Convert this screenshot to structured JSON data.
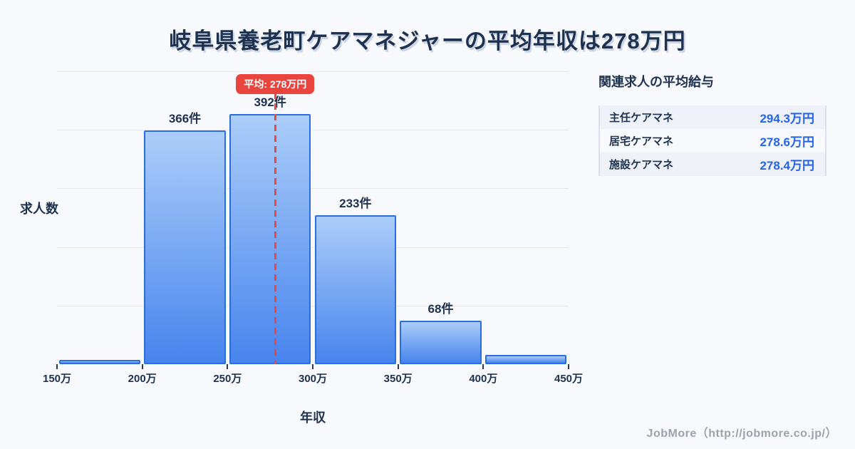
{
  "title": "岐阜県養老町ケアマネジャーの平均年収は278万円",
  "chart_data": {
    "type": "bar",
    "title": "岐阜県養老町ケアマネジャーの平均年収は278万円",
    "xlabel": "年収",
    "ylabel": "求人数",
    "x_tick_labels": [
      "150万",
      "200万",
      "250万",
      "300万",
      "350万",
      "400万",
      "450万"
    ],
    "x_range_man_yen": [
      150,
      450
    ],
    "ylim": [
      0,
      459
    ],
    "grid": true,
    "bins": [
      {
        "range_man_yen": [
          150,
          200
        ],
        "count": 7,
        "count_label": ""
      },
      {
        "range_man_yen": [
          200,
          250
        ],
        "count": 366,
        "count_label": "366件"
      },
      {
        "range_man_yen": [
          250,
          300
        ],
        "count": 392,
        "count_label": "392件"
      },
      {
        "range_man_yen": [
          300,
          350
        ],
        "count": 233,
        "count_label": "233件"
      },
      {
        "range_man_yen": [
          350,
          400
        ],
        "count": 68,
        "count_label": "68件"
      },
      {
        "range_man_yen": [
          400,
          450
        ],
        "count": 15,
        "count_label": ""
      }
    ],
    "mean_line": {
      "value_man_yen": 278,
      "label": "平均: 278万円"
    }
  },
  "side_panel": {
    "heading": "関連求人の平均給与",
    "rows": [
      {
        "label": "主任ケアマネ",
        "value": "294.3万円"
      },
      {
        "label": "居宅ケアマネ",
        "value": "278.6万円"
      },
      {
        "label": "施設ケアマネ",
        "value": "278.4万円"
      }
    ]
  },
  "footer": {
    "credit": "JobMore（http://jobmore.co.jp/）"
  },
  "colors": {
    "background": "#f8f9fc",
    "title_text": "#1d3150",
    "bar_fill_top": "#abcdf9",
    "bar_fill_bottom": "#4784ed",
    "bar_border": "#2b6ce0",
    "mean_line": "#ee4540",
    "badge_bg": "#e9443e",
    "badge_text": "#ffffff",
    "value_blue": "#2563eb",
    "gridline": "#e4e8f0",
    "footer_text": "#9ca3ab"
  }
}
